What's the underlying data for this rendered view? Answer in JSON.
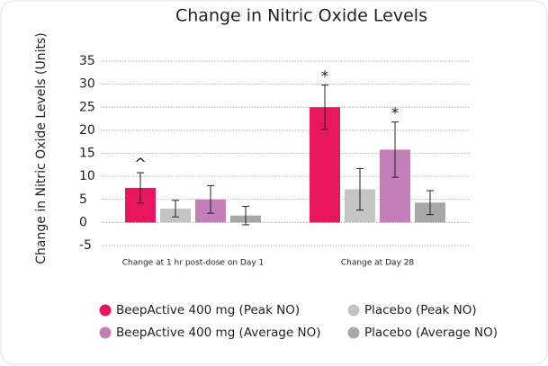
{
  "chart_data": {
    "type": "bar",
    "title": "Change in Nitric Oxide Levels",
    "y_label": "Change in Nitric Oxide Levels (Units)",
    "categories": [
      "Change at 1 hr post-dose on Day 1",
      "Change at Day 28"
    ],
    "series": [
      {
        "name": "BeepActive 400 mg (Peak NO)",
        "color": "#e8175d",
        "values": [
          7.5,
          25
        ],
        "errors": [
          3.3,
          4.8
        ],
        "annotations": [
          "^",
          "*"
        ]
      },
      {
        "name": "Placebo (Peak NO)",
        "color": "#c4c4c4",
        "values": [
          3,
          7.2
        ],
        "errors": [
          1.8,
          4.5
        ],
        "annotations": [
          null,
          null
        ]
      },
      {
        "name": "BeepActive 400 mg (Average NO)",
        "color": "#c47fb8",
        "values": [
          5,
          15.8
        ],
        "errors": [
          3,
          6
        ],
        "annotations": [
          null,
          "*"
        ]
      },
      {
        "name": "Placebo (Average NO)",
        "color": "#a8a8a8",
        "values": [
          1.5,
          4.3
        ],
        "errors": [
          2,
          2.6
        ],
        "annotations": [
          null,
          null
        ]
      }
    ],
    "ylim": [
      -5,
      35
    ],
    "yticks": [
      -5,
      0,
      5,
      10,
      15,
      20,
      25,
      30,
      35
    ],
    "grid": true
  }
}
